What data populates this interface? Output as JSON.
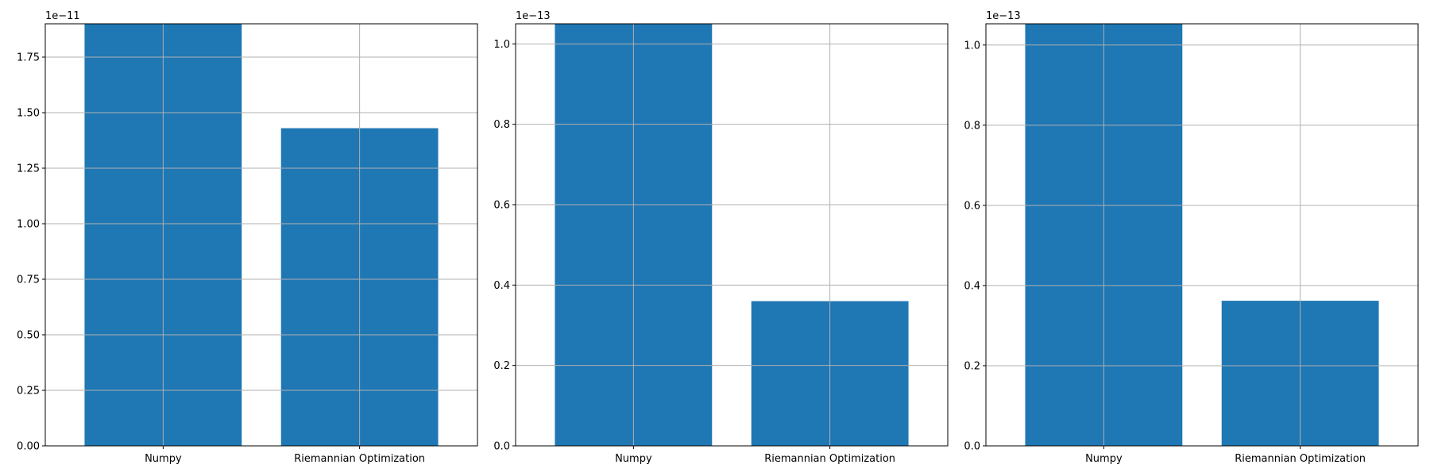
{
  "colors": {
    "bar": "#1f77b4",
    "grid": "#b0b0b0",
    "axis": "#000000",
    "background": "#ffffff"
  },
  "chart_data": [
    {
      "type": "bar",
      "categories": [
        "Numpy",
        "Riemannian Optimization"
      ],
      "values": [
        1.9e-11,
        1.43e-11
      ],
      "offset_label": "1e−11",
      "ylim": [
        0,
        1.9
      ],
      "yticks": [
        0,
        0.25,
        0.5,
        0.75,
        1.0,
        1.25,
        1.5,
        1.75
      ],
      "ytick_labels": [
        "0.00",
        "0.25",
        "0.50",
        "0.75",
        "1.00",
        "1.25",
        "1.50",
        "1.75"
      ],
      "grid": true
    },
    {
      "type": "bar",
      "categories": [
        "Numpy",
        "Riemannian Optimization"
      ],
      "values": [
        1.05e-13,
        3.6e-14
      ],
      "offset_label": "1e−13",
      "ylim": [
        0,
        1.05
      ],
      "yticks": [
        0,
        0.2,
        0.4,
        0.6,
        0.8,
        1.0
      ],
      "ytick_labels": [
        "0.0",
        "0.2",
        "0.4",
        "0.6",
        "0.8",
        "1.0"
      ],
      "grid": true
    },
    {
      "type": "bar",
      "categories": [
        "Numpy",
        "Riemannian Optimization"
      ],
      "values": [
        1.053e-13,
        3.62e-14
      ],
      "offset_label": "1e−13",
      "ylim": [
        0,
        1.053
      ],
      "yticks": [
        0,
        0.2,
        0.4,
        0.6,
        0.8,
        1.0
      ],
      "ytick_labels": [
        "0.0",
        "0.2",
        "0.4",
        "0.6",
        "0.8",
        "1.0"
      ],
      "grid": true
    }
  ]
}
